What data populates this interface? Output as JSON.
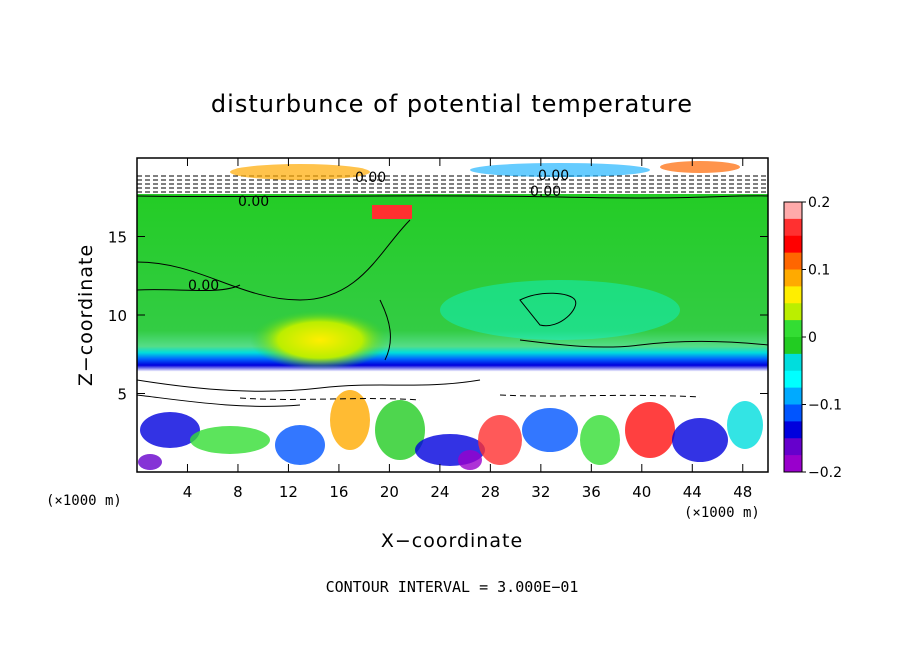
{
  "chart_data": {
    "type": "heatmap",
    "title": "disturbunce of potential temperature",
    "xlabel": "X−coordinate",
    "ylabel": "Z−coordinate",
    "x_unit_left": "(×1000 m)",
    "x_unit_right": "(×1000 m)",
    "xlim": [
      0,
      50
    ],
    "ylim": [
      0,
      20
    ],
    "x_ticks": [
      4,
      8,
      12,
      16,
      20,
      24,
      28,
      32,
      36,
      40,
      44,
      48
    ],
    "y_ticks": [
      5,
      10,
      15
    ],
    "colorbar": {
      "range": [
        -0.2,
        0.2
      ],
      "tick_values": [
        0.2,
        0.1,
        0,
        -0.1,
        -0.2
      ],
      "tick_labels": [
        "0.2",
        "0.1",
        "0",
        "−0.1",
        "−0.2"
      ],
      "colors": [
        "#ffaaaa",
        "#ff3030",
        "#ff0000",
        "#ff6600",
        "#ffaa00",
        "#ffee00",
        "#bbee00",
        "#33dd33",
        "#22cc22",
        "#00dddd",
        "#00ffff",
        "#00aaff",
        "#0055ff",
        "#0000dd",
        "#6600cc",
        "#9900cc"
      ]
    },
    "contour_labels": [
      "0.00",
      "0.00",
      "0.00",
      "0.00",
      "0.00"
    ],
    "footer": "CONTOUR INTERVAL =  3.000E−01"
  }
}
